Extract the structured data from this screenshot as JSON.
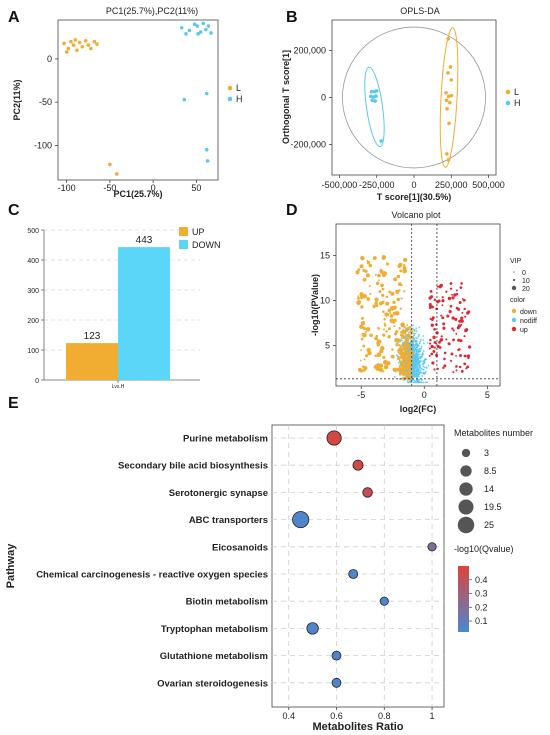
{
  "panels": {
    "A": "A",
    "B": "B",
    "C": "C",
    "D": "D",
    "E": "E"
  },
  "colors": {
    "L": "#f0ad32",
    "H": "#5bc8ee",
    "up": "#e0262e",
    "grid": "#d0d0d0"
  },
  "chart_data": [
    {
      "id": "A",
      "type": "scatter",
      "title": "PC1(25.7%),PC2(11%)",
      "xlabel": "PC1(25.7%)",
      "ylabel": "PC2(11%)",
      "xlim": [
        -110,
        75
      ],
      "ylim": [
        -140,
        45
      ],
      "xticks": [
        -100,
        -50,
        0,
        50
      ],
      "yticks": [
        0,
        -50,
        -100
      ],
      "legend_position": "right",
      "series": [
        {
          "name": "L",
          "color": "#f0ad32",
          "points": [
            [
              -103,
              18
            ],
            [
              -98,
              12
            ],
            [
              -95,
              20
            ],
            [
              -92,
              16
            ],
            [
              -88,
              10
            ],
            [
              -85,
              19
            ],
            [
              -82,
              14
            ],
            [
              -78,
              21
            ],
            [
              -75,
              16
            ],
            [
              -72,
              12
            ],
            [
              -68,
              20
            ],
            [
              -65,
              17
            ],
            [
              -100,
              8
            ],
            [
              -90,
              22
            ],
            [
              -50,
              -122
            ],
            [
              -42,
              -133
            ]
          ]
        },
        {
          "name": "H",
          "color": "#5bc8ee",
          "points": [
            [
              33,
              36
            ],
            [
              38,
              29
            ],
            [
              42,
              33
            ],
            [
              48,
              40
            ],
            [
              51,
              38
            ],
            [
              55,
              31
            ],
            [
              58,
              41
            ],
            [
              61,
              34
            ],
            [
              64,
              38
            ],
            [
              67,
              30
            ],
            [
              52,
              29
            ],
            [
              36,
              -47
            ],
            [
              62,
              -40
            ],
            [
              62,
              -105
            ],
            [
              63,
              -118
            ]
          ]
        }
      ]
    },
    {
      "id": "B",
      "type": "scatter",
      "title": "OPLS-DA",
      "xlabel": "T score[1](30.5%)",
      "ylabel": "Orthogonal T score[1]",
      "xlim": [
        -550000,
        550000
      ],
      "ylim": [
        -330000,
        330000
      ],
      "xticks": [
        -500000,
        -250000,
        0,
        250000,
        500000
      ],
      "xtick_labels": [
        "-500,000",
        "-250,000",
        "0",
        "250,000",
        "500,000"
      ],
      "yticks": [
        200000,
        0,
        -200000
      ],
      "ytick_labels": [
        "200,000",
        "0",
        "-200,000"
      ],
      "legend_position": "right",
      "series": [
        {
          "name": "L",
          "color": "#f0ad32",
          "points": [
            [
              230000,
              250000
            ],
            [
              245000,
              130000
            ],
            [
              228000,
              105000
            ],
            [
              250000,
              75000
            ],
            [
              215000,
              20000
            ],
            [
              232000,
              5000
            ],
            [
              252000,
              8000
            ],
            [
              218000,
              -12000
            ],
            [
              240000,
              -22000
            ],
            [
              222000,
              -48000
            ],
            [
              235000,
              -110000
            ],
            [
              220000,
              -240000
            ],
            [
              232000,
              -265000
            ]
          ]
        },
        {
          "name": "H",
          "color": "#5bc8ee",
          "points": [
            [
              -285000,
              25000
            ],
            [
              -265000,
              25000
            ],
            [
              -250000,
              28000
            ],
            [
              -290000,
              5000
            ],
            [
              -270000,
              2000
            ],
            [
              -255000,
              6000
            ],
            [
              -280000,
              -12000
            ],
            [
              -260000,
              -15000
            ],
            [
              -220000,
              -185000
            ]
          ]
        }
      ]
    },
    {
      "id": "C",
      "type": "bar",
      "categories": [
        "Lvs.H"
      ],
      "ylim": [
        0,
        500
      ],
      "yticks": [
        0,
        100,
        200,
        300,
        400,
        500
      ],
      "legend_position": "right",
      "series": [
        {
          "name": "UP",
          "color": "#f0ad32",
          "values": [
            123
          ],
          "label": "123"
        },
        {
          "name": "DOWN",
          "color": "#5bd6f8",
          "values": [
            443
          ],
          "label": "443"
        }
      ]
    },
    {
      "id": "D",
      "type": "scatter",
      "title": "Volcano plot",
      "xlabel": "log2(FC)",
      "ylabel": "-log10(PValue)",
      "xlim": [
        -7,
        6
      ],
      "ylim": [
        0.5,
        18.5
      ],
      "xticks": [
        -5,
        0,
        5
      ],
      "yticks": [
        5,
        10,
        15
      ],
      "vlines": [
        -1,
        1
      ],
      "hline": 1.3,
      "legend_vip_title": "VIP",
      "legend_vip": [
        "0",
        "10",
        "20"
      ],
      "legend_color_title": "color",
      "legend_color": [
        {
          "label": "down",
          "color": "#f0ad32"
        },
        {
          "label": "nodiff",
          "color": "#5bc8ee"
        },
        {
          "label": "up",
          "color": "#e0262e"
        }
      ]
    },
    {
      "id": "E",
      "type": "scatter",
      "xlabel": "Metabolites Ratio",
      "ylabel": "Pathway",
      "xlim": [
        0.33,
        1.05
      ],
      "xticks": [
        0.4,
        0.6,
        0.8,
        1
      ],
      "xtick_labels": [
        "0.4",
        "0.6",
        "0.8",
        "1"
      ],
      "size_legend_title": "Metabolites number",
      "size_legend": [
        3,
        8.5,
        14,
        19.5,
        25
      ],
      "size_legend_labels": [
        "3",
        "8.5",
        "14",
        "19.5",
        "25"
      ],
      "color_legend_title": "-log10(Qvalue)",
      "color_legend_ticks": [
        0.4,
        0.3,
        0.2,
        0.1
      ],
      "color_legend_labels": [
        "0.4",
        "0.3",
        "0.2",
        "0.1"
      ],
      "color_range": [
        0.02,
        0.5
      ],
      "pathways": [
        {
          "name": "Purine metabolism",
          "ratio": 0.59,
          "count": 17,
          "q": 0.47
        },
        {
          "name": "Secondary bile acid biosynthesis",
          "ratio": 0.69,
          "count": 6,
          "q": 0.47
        },
        {
          "name": "Serotonergic synapse",
          "ratio": 0.73,
          "count": 5,
          "q": 0.42
        },
        {
          "name": "ABC transporters",
          "ratio": 0.45,
          "count": 24,
          "q": 0.04
        },
        {
          "name": "Eicosanoids",
          "ratio": 1.0,
          "count": 3,
          "q": 0.2
        },
        {
          "name": "Chemical carcinogenesis - reactive oxygen species",
          "ratio": 0.67,
          "count": 4,
          "q": 0.04
        },
        {
          "name": "Biotin metabolism",
          "ratio": 0.8,
          "count": 3,
          "q": 0.04
        },
        {
          "name": "Tryptophan metabolism",
          "ratio": 0.5,
          "count": 9,
          "q": 0.04
        },
        {
          "name": "Glutathione metabolism",
          "ratio": 0.6,
          "count": 4,
          "q": 0.04
        },
        {
          "name": "Ovarian steroidogenesis",
          "ratio": 0.6,
          "count": 4,
          "q": 0.04
        }
      ]
    }
  ]
}
